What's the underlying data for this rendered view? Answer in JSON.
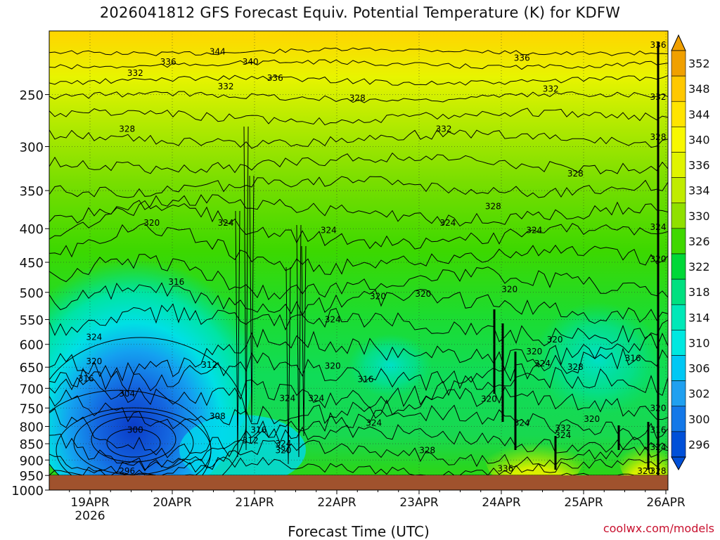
{
  "chart_data": {
    "type": "heatmap",
    "title": "2026041812 GFS Forecast Equiv. Potential Temperature (K) for KDFW",
    "xlabel": "Forecast Time (UTC)",
    "ylabel": "",
    "x_ticks": [
      {
        "label": "19APR",
        "sub": "2026"
      },
      {
        "label": "20APR",
        "sub": ""
      },
      {
        "label": "21APR",
        "sub": ""
      },
      {
        "label": "22APR",
        "sub": ""
      },
      {
        "label": "23APR",
        "sub": ""
      },
      {
        "label": "24APR",
        "sub": ""
      },
      {
        "label": "25APR",
        "sub": ""
      },
      {
        "label": "26APR",
        "sub": ""
      }
    ],
    "y_ticks": [
      250,
      300,
      350,
      400,
      450,
      500,
      550,
      600,
      650,
      700,
      750,
      800,
      850,
      900,
      950,
      1000
    ],
    "ylim": [
      200,
      1000
    ],
    "y_scale": "log-pressure",
    "grid": true,
    "colorbar": {
      "labels": [
        352,
        348,
        344,
        340,
        336,
        334,
        330,
        326,
        322,
        318,
        314,
        310,
        306,
        302,
        300,
        296
      ],
      "colors": [
        "#f0a000",
        "#ffc800",
        "#ffe400",
        "#f8f800",
        "#e0f400",
        "#c0ec00",
        "#90e000",
        "#40d800",
        "#00d838",
        "#00e080",
        "#00e8b8",
        "#00e8e0",
        "#00c8f4",
        "#20a0f0",
        "#1478e8",
        "#0050d8"
      ]
    },
    "ground_color": "#a0522d",
    "contour_labels": [
      {
        "t": 1.55,
        "p": 215,
        "v": "344"
      },
      {
        "t": 0.95,
        "p": 223,
        "v": "336"
      },
      {
        "t": 1.95,
        "p": 223,
        "v": "340"
      },
      {
        "t": 0.55,
        "p": 232,
        "v": "332"
      },
      {
        "t": 2.25,
        "p": 236,
        "v": "336"
      },
      {
        "t": 1.65,
        "p": 243,
        "v": "332"
      },
      {
        "t": 3.25,
        "p": 253,
        "v": "328"
      },
      {
        "t": 5.25,
        "p": 220,
        "v": "336"
      },
      {
        "t": 8.4,
        "p": 210,
        "v": "336"
      },
      {
        "t": 5.6,
        "p": 245,
        "v": "332"
      },
      {
        "t": 8.4,
        "p": 252,
        "v": "332"
      },
      {
        "t": 4.3,
        "p": 282,
        "v": "332"
      },
      {
        "t": 0.45,
        "p": 282,
        "v": "328"
      },
      {
        "t": 8.15,
        "p": 290,
        "v": "328"
      },
      {
        "t": 5.9,
        "p": 330,
        "v": "328"
      },
      {
        "t": 4.9,
        "p": 370,
        "v": "328"
      },
      {
        "t": 0.75,
        "p": 392,
        "v": "320"
      },
      {
        "t": 1.65,
        "p": 392,
        "v": "324"
      },
      {
        "t": 2.9,
        "p": 402,
        "v": "324"
      },
      {
        "t": 4.35,
        "p": 392,
        "v": "324"
      },
      {
        "t": 5.4,
        "p": 402,
        "v": "324"
      },
      {
        "t": 7.85,
        "p": 398,
        "v": "324"
      },
      {
        "t": 7.65,
        "p": 445,
        "v": "320"
      },
      {
        "t": 1.05,
        "p": 482,
        "v": "316"
      },
      {
        "t": 4.05,
        "p": 503,
        "v": "320"
      },
      {
        "t": 3.5,
        "p": 507,
        "v": "320"
      },
      {
        "t": 5.1,
        "p": 495,
        "v": "320"
      },
      {
        "t": 2.95,
        "p": 550,
        "v": "324"
      },
      {
        "t": 0.05,
        "p": 585,
        "v": "324"
      },
      {
        "t": 5.65,
        "p": 590,
        "v": "320"
      },
      {
        "t": 5.4,
        "p": 615,
        "v": "320"
      },
      {
        "t": 0.05,
        "p": 637,
        "v": "320"
      },
      {
        "t": 5.5,
        "p": 642,
        "v": "324"
      },
      {
        "t": 5.9,
        "p": 650,
        "v": "328"
      },
      {
        "t": 6.6,
        "p": 630,
        "v": "316"
      },
      {
        "t": 1.45,
        "p": 645,
        "v": "312"
      },
      {
        "t": 2.95,
        "p": 647,
        "v": "320"
      },
      {
        "t": -0.05,
        "p": 677,
        "v": "316"
      },
      {
        "t": 3.35,
        "p": 678,
        "v": "316"
      },
      {
        "t": 0.45,
        "p": 713,
        "v": "304"
      },
      {
        "t": 2.4,
        "p": 725,
        "v": "324"
      },
      {
        "t": 2.75,
        "p": 725,
        "v": "324"
      },
      {
        "t": 4.85,
        "p": 727,
        "v": "320"
      },
      {
        "t": 1.55,
        "p": 772,
        "v": "308"
      },
      {
        "t": 3.45,
        "p": 790,
        "v": "324"
      },
      {
        "t": 5.25,
        "p": 790,
        "v": "324"
      },
      {
        "t": 6.1,
        "p": 780,
        "v": "320"
      },
      {
        "t": 7.85,
        "p": 750,
        "v": "320"
      },
      {
        "t": 0.55,
        "p": 810,
        "v": "300"
      },
      {
        "t": 2.05,
        "p": 810,
        "v": "316"
      },
      {
        "t": 5.75,
        "p": 805,
        "v": "332"
      },
      {
        "t": 5.75,
        "p": 825,
        "v": "324"
      },
      {
        "t": 7.45,
        "p": 810,
        "v": "316"
      },
      {
        "t": 1.95,
        "p": 840,
        "v": "312"
      },
      {
        "t": 2.35,
        "p": 850,
        "v": "324"
      },
      {
        "t": 2.35,
        "p": 870,
        "v": "320"
      },
      {
        "t": 4.1,
        "p": 870,
        "v": "328"
      },
      {
        "t": 7.7,
        "p": 860,
        "v": "324"
      },
      {
        "t": 5.05,
        "p": 928,
        "v": "336"
      },
      {
        "t": 0.45,
        "p": 948,
        "v": "296"
      },
      {
        "t": 7.35,
        "p": 948,
        "v": "328"
      },
      {
        "t": 6.75,
        "p": 980,
        "v": "320"
      }
    ]
  }
}
